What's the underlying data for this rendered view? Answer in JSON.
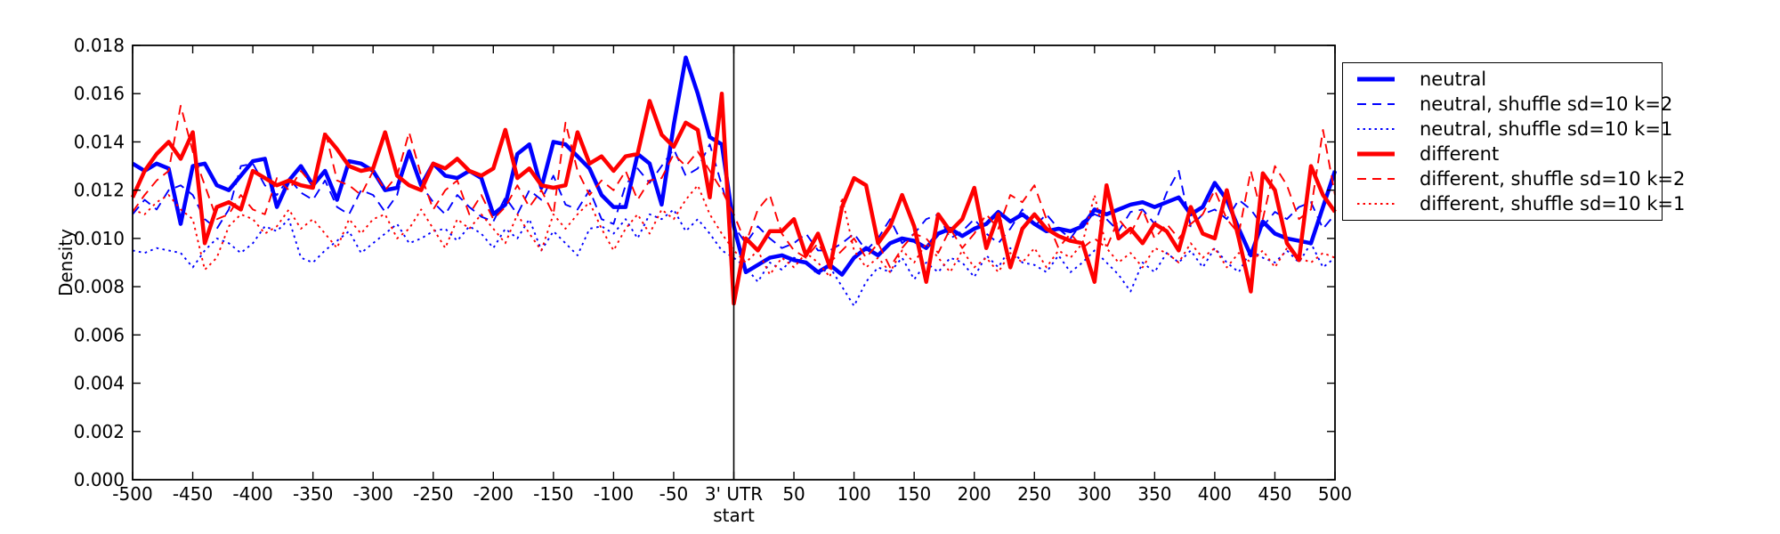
{
  "figure": {
    "background_color": "#ffffff",
    "frame_color": "#000000"
  },
  "chart_data": {
    "type": "line",
    "title": "",
    "ylabel": "Density",
    "xlabel": "",
    "grid": false,
    "legend_position": "outside upper right",
    "xlim": [
      -500,
      500
    ],
    "ylim": [
      0.0,
      0.018
    ],
    "x_ticks": [
      -500,
      -450,
      -400,
      -350,
      -300,
      -250,
      -200,
      -150,
      -100,
      -50,
      0,
      50,
      100,
      150,
      200,
      250,
      300,
      350,
      400,
      450,
      500
    ],
    "x_zero_tick_label": [
      "3' UTR",
      "start"
    ],
    "y_ticks": [
      0.0,
      0.002,
      0.004,
      0.006,
      0.008,
      0.01,
      0.012,
      0.014,
      0.016,
      0.018
    ],
    "vline_x": 0,
    "x": [
      -500,
      -490,
      -480,
      -470,
      -460,
      -450,
      -440,
      -430,
      -420,
      -410,
      -400,
      -390,
      -380,
      -370,
      -360,
      -350,
      -340,
      -330,
      -320,
      -310,
      -300,
      -290,
      -280,
      -270,
      -260,
      -250,
      -240,
      -230,
      -220,
      -210,
      -200,
      -190,
      -180,
      -170,
      -160,
      -150,
      -140,
      -130,
      -120,
      -110,
      -100,
      -90,
      -80,
      -70,
      -60,
      -50,
      -40,
      -30,
      -20,
      -10,
      0,
      10,
      20,
      30,
      40,
      50,
      60,
      70,
      80,
      90,
      100,
      110,
      120,
      130,
      140,
      150,
      160,
      170,
      180,
      190,
      200,
      210,
      220,
      230,
      240,
      250,
      260,
      270,
      280,
      290,
      300,
      310,
      320,
      330,
      340,
      350,
      360,
      370,
      380,
      390,
      400,
      410,
      420,
      430,
      440,
      450,
      460,
      470,
      480,
      490,
      500
    ],
    "series": [
      {
        "name": "neutral",
        "color": "#0000ff",
        "line_style": "solid",
        "values": [
          0.0131,
          0.0128,
          0.0131,
          0.0129,
          0.0106,
          0.013,
          0.0131,
          0.0122,
          0.012,
          0.0126,
          0.0132,
          0.0133,
          0.0113,
          0.0124,
          0.013,
          0.0122,
          0.0128,
          0.0116,
          0.0132,
          0.0131,
          0.0128,
          0.012,
          0.0121,
          0.0136,
          0.0122,
          0.0131,
          0.0126,
          0.0125,
          0.0128,
          0.0125,
          0.011,
          0.0114,
          0.0135,
          0.0139,
          0.0121,
          0.014,
          0.0139,
          0.0134,
          0.0129,
          0.0118,
          0.0113,
          0.0113,
          0.0135,
          0.0131,
          0.0114,
          0.0147,
          0.0175,
          0.016,
          0.0142,
          0.0139,
          0.0105,
          0.0086,
          0.0089,
          0.0092,
          0.0093,
          0.0091,
          0.009,
          0.0086,
          0.0089,
          0.0085,
          0.0092,
          0.0096,
          0.0093,
          0.0098,
          0.01,
          0.0099,
          0.0096,
          0.0102,
          0.0104,
          0.0101,
          0.0104,
          0.0106,
          0.0111,
          0.0107,
          0.011,
          0.0106,
          0.0103,
          0.0104,
          0.0103,
          0.0105,
          0.0112,
          0.011,
          0.0112,
          0.0114,
          0.0115,
          0.0113,
          0.0115,
          0.0117,
          0.011,
          0.0113,
          0.0123,
          0.0116,
          0.0104,
          0.0093,
          0.0107,
          0.0102,
          0.01,
          0.0099,
          0.0098,
          0.0113,
          0.0128
        ]
      },
      {
        "name": "neutral, shuffle sd=10 k=2",
        "color": "#0000ff",
        "line_style": "dashed",
        "values": [
          0.011,
          0.0116,
          0.0112,
          0.012,
          0.0122,
          0.0118,
          0.0108,
          0.0104,
          0.0112,
          0.013,
          0.0131,
          0.0122,
          0.0118,
          0.0125,
          0.0119,
          0.0116,
          0.0124,
          0.0113,
          0.011,
          0.012,
          0.0118,
          0.0111,
          0.0118,
          0.0137,
          0.0122,
          0.0115,
          0.011,
          0.0118,
          0.0113,
          0.0109,
          0.0107,
          0.0117,
          0.011,
          0.012,
          0.0116,
          0.0126,
          0.0114,
          0.0112,
          0.012,
          0.0108,
          0.0106,
          0.0122,
          0.0129,
          0.0123,
          0.013,
          0.0137,
          0.0126,
          0.0129,
          0.0139,
          0.0122,
          0.0105,
          0.0098,
          0.0105,
          0.01,
          0.0096,
          0.0098,
          0.0102,
          0.0095,
          0.0095,
          0.0098,
          0.0102,
          0.0095,
          0.01,
          0.0108,
          0.0098,
          0.0102,
          0.0108,
          0.011,
          0.01,
          0.0103,
          0.0108,
          0.0102,
          0.0098,
          0.0104,
          0.0112,
          0.0105,
          0.011,
          0.0104,
          0.01,
          0.0107,
          0.011,
          0.0108,
          0.0103,
          0.0111,
          0.0112,
          0.0106,
          0.0119,
          0.0128,
          0.0105,
          0.011,
          0.0112,
          0.0108,
          0.0116,
          0.0112,
          0.0105,
          0.0111,
          0.0108,
          0.0113,
          0.0115,
          0.0104,
          0.011
        ]
      },
      {
        "name": "neutral, shuffle sd=10 k=1",
        "color": "#0000ff",
        "line_style": "dotted",
        "values": [
          0.0095,
          0.0094,
          0.0096,
          0.0095,
          0.0094,
          0.0088,
          0.0095,
          0.01,
          0.0098,
          0.0094,
          0.0098,
          0.0105,
          0.0103,
          0.0108,
          0.0092,
          0.009,
          0.0095,
          0.0099,
          0.0103,
          0.0094,
          0.0098,
          0.0102,
          0.0106,
          0.0098,
          0.01,
          0.0103,
          0.0104,
          0.0099,
          0.0105,
          0.0102,
          0.0096,
          0.0104,
          0.01,
          0.0108,
          0.0095,
          0.0103,
          0.0098,
          0.0093,
          0.0104,
          0.0105,
          0.0102,
          0.0108,
          0.01,
          0.011,
          0.0108,
          0.0112,
          0.0103,
          0.0108,
          0.0102,
          0.0095,
          0.0092,
          0.0088,
          0.0082,
          0.009,
          0.0087,
          0.0092,
          0.009,
          0.0085,
          0.0088,
          0.008,
          0.0072,
          0.0082,
          0.0088,
          0.0086,
          0.0092,
          0.0083,
          0.009,
          0.0086,
          0.0092,
          0.009,
          0.0084,
          0.0093,
          0.0088,
          0.0096,
          0.009,
          0.0089,
          0.0086,
          0.0093,
          0.0086,
          0.009,
          0.0095,
          0.009,
          0.0085,
          0.0078,
          0.009,
          0.0086,
          0.0094,
          0.009,
          0.0095,
          0.0088,
          0.0096,
          0.009,
          0.0086,
          0.0095,
          0.0092,
          0.009,
          0.0095,
          0.009,
          0.0098,
          0.0088,
          0.0092
        ]
      },
      {
        "name": "different",
        "color": "#ff0000",
        "line_style": "solid",
        "values": [
          0.0117,
          0.0128,
          0.0135,
          0.014,
          0.0133,
          0.0144,
          0.0098,
          0.0113,
          0.0115,
          0.0112,
          0.0128,
          0.0125,
          0.0122,
          0.0124,
          0.0122,
          0.0121,
          0.0143,
          0.0137,
          0.013,
          0.0128,
          0.0129,
          0.0144,
          0.0126,
          0.0122,
          0.012,
          0.0131,
          0.0129,
          0.0133,
          0.0128,
          0.0126,
          0.0129,
          0.0145,
          0.0125,
          0.0129,
          0.0122,
          0.0121,
          0.0122,
          0.0144,
          0.0131,
          0.0134,
          0.0128,
          0.0134,
          0.0135,
          0.0157,
          0.0143,
          0.0138,
          0.0148,
          0.0145,
          0.0117,
          0.016,
          0.0073,
          0.01,
          0.0095,
          0.0103,
          0.0103,
          0.0108,
          0.0093,
          0.0102,
          0.0088,
          0.0113,
          0.0125,
          0.0122,
          0.0098,
          0.0105,
          0.0118,
          0.0105,
          0.0082,
          0.011,
          0.0103,
          0.0108,
          0.0121,
          0.0096,
          0.011,
          0.0088,
          0.0104,
          0.011,
          0.0104,
          0.0101,
          0.0099,
          0.0098,
          0.0082,
          0.0122,
          0.01,
          0.0104,
          0.0098,
          0.0106,
          0.0103,
          0.0095,
          0.0113,
          0.0102,
          0.01,
          0.012,
          0.01,
          0.0078,
          0.0127,
          0.012,
          0.0098,
          0.0091,
          0.013,
          0.0118,
          0.0111
        ]
      },
      {
        "name": "different, shuffle sd=10 k=2",
        "color": "#ff0000",
        "line_style": "dashed",
        "values": [
          0.0111,
          0.0118,
          0.0124,
          0.0128,
          0.0155,
          0.0136,
          0.0122,
          0.0108,
          0.011,
          0.0118,
          0.0112,
          0.011,
          0.0125,
          0.012,
          0.0128,
          0.0122,
          0.0145,
          0.0124,
          0.0122,
          0.0118,
          0.0128,
          0.012,
          0.0126,
          0.0144,
          0.0126,
          0.0112,
          0.012,
          0.0124,
          0.011,
          0.0118,
          0.0108,
          0.0113,
          0.0122,
          0.0113,
          0.012,
          0.011,
          0.0148,
          0.0128,
          0.0118,
          0.0124,
          0.012,
          0.0128,
          0.0116,
          0.0124,
          0.0125,
          0.0135,
          0.013,
          0.0136,
          0.0128,
          0.012,
          0.011,
          0.0098,
          0.0112,
          0.0118,
          0.0102,
          0.0095,
          0.0092,
          0.0098,
          0.009,
          0.0095,
          0.01,
          0.0092,
          0.0098,
          0.0088,
          0.0096,
          0.0102,
          0.01,
          0.0094,
          0.0104,
          0.0096,
          0.0102,
          0.011,
          0.0104,
          0.0118,
          0.0115,
          0.0122,
          0.0108,
          0.0096,
          0.0102,
          0.0096,
          0.01,
          0.0096,
          0.0108,
          0.0102,
          0.0112,
          0.01,
          0.0106,
          0.01,
          0.0106,
          0.011,
          0.012,
          0.0108,
          0.0102,
          0.0128,
          0.0108,
          0.013,
          0.0122,
          0.0108,
          0.0112,
          0.0145,
          0.0118
        ]
      },
      {
        "name": "different, shuffle sd=10 k=1",
        "color": "#ff0000",
        "line_style": "dotted",
        "values": [
          0.0112,
          0.011,
          0.0115,
          0.0118,
          0.0112,
          0.0108,
          0.0087,
          0.0092,
          0.0105,
          0.011,
          0.0108,
          0.0102,
          0.0105,
          0.0112,
          0.0104,
          0.0108,
          0.0102,
          0.0096,
          0.0108,
          0.0102,
          0.0108,
          0.011,
          0.01,
          0.0104,
          0.0112,
          0.0104,
          0.0096,
          0.0108,
          0.0104,
          0.011,
          0.0104,
          0.0098,
          0.011,
          0.0102,
          0.0095,
          0.011,
          0.0104,
          0.011,
          0.0115,
          0.0104,
          0.0095,
          0.0104,
          0.011,
          0.0102,
          0.0112,
          0.0108,
          0.0116,
          0.0122,
          0.011,
          0.0102,
          0.0095,
          0.009,
          0.0095,
          0.0085,
          0.0092,
          0.0088,
          0.0094,
          0.009,
          0.0084,
          0.0117,
          0.0095,
          0.0088,
          0.0092,
          0.0086,
          0.0095,
          0.009,
          0.0098,
          0.0092,
          0.0086,
          0.0095,
          0.0088,
          0.0092,
          0.0086,
          0.0094,
          0.009,
          0.0096,
          0.0088,
          0.0095,
          0.0092,
          0.0098,
          0.0118,
          0.0096,
          0.009,
          0.0094,
          0.0088,
          0.0096,
          0.0094,
          0.009,
          0.0098,
          0.0092,
          0.0096,
          0.0088,
          0.0094,
          0.009,
          0.0095,
          0.0088,
          0.0096,
          0.0092,
          0.009,
          0.0094,
          0.0092
        ]
      }
    ]
  }
}
